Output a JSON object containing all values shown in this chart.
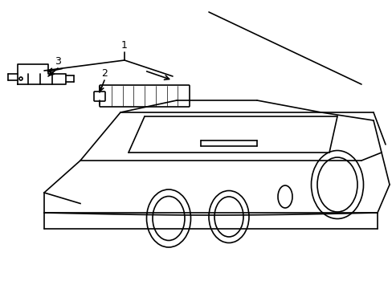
{
  "title": "",
  "bg_color": "#ffffff",
  "line_color": "#000000",
  "line_width": 1.2,
  "fig_width": 4.89,
  "fig_height": 3.6,
  "dpi": 100,
  "labels": {
    "1": [
      1.55,
      2.85
    ],
    "2": [
      1.3,
      2.45
    ],
    "3": [
      0.72,
      2.55
    ]
  }
}
